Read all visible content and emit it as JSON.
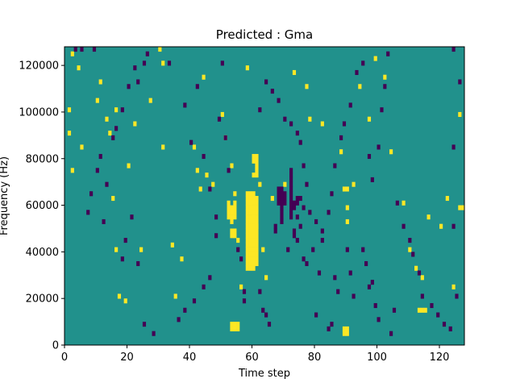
{
  "chart_data": {
    "type": "heatmap",
    "title": "Predicted : Gma",
    "xlabel": "Time step",
    "ylabel": "Frequency (Hz)",
    "xlim": [
      0,
      128
    ],
    "ylim": [
      0,
      128000
    ],
    "xticks": [
      0,
      20,
      40,
      60,
      80,
      100,
      120
    ],
    "xtick_labels": [
      "0",
      "20",
      "40",
      "60",
      "80",
      "100",
      "120"
    ],
    "yticks": [
      0,
      20000,
      40000,
      60000,
      80000,
      100000,
      120000
    ],
    "ytick_labels": [
      "0",
      "20000",
      "40000",
      "60000",
      "80000",
      "100000",
      "120000"
    ],
    "grid": false,
    "n_time_steps": 128,
    "n_frequency_bins": 64,
    "color_scale": {
      "low": {
        "value": -1,
        "color": "#440154"
      },
      "mid": {
        "value": 0,
        "color": "#21918c"
      },
      "high": {
        "value": 1,
        "color": "#fde725"
      }
    },
    "background_value": 0,
    "cells_high": [
      [
        2,
        62
      ],
      [
        4,
        59
      ],
      [
        1,
        50
      ],
      [
        1,
        45
      ],
      [
        2,
        37
      ],
      [
        5,
        42
      ],
      [
        10,
        52
      ],
      [
        11,
        56
      ],
      [
        13,
        48
      ],
      [
        14,
        45
      ],
      [
        15,
        31
      ],
      [
        16,
        50
      ],
      [
        17,
        10
      ],
      [
        16,
        20
      ],
      [
        19,
        9
      ],
      [
        20,
        38
      ],
      [
        22,
        47
      ],
      [
        24,
        20
      ],
      [
        27,
        52
      ],
      [
        30,
        63
      ],
      [
        31,
        60
      ],
      [
        31,
        42
      ],
      [
        34,
        21
      ],
      [
        35,
        10
      ],
      [
        37,
        18
      ],
      [
        41,
        42
      ],
      [
        42,
        37
      ],
      [
        43,
        33
      ],
      [
        44,
        57
      ],
      [
        45,
        36
      ],
      [
        47,
        34
      ],
      [
        50,
        49
      ],
      [
        51,
        44
      ],
      [
        53,
        38
      ],
      [
        54,
        32
      ],
      [
        55,
        22
      ],
      [
        56,
        12
      ],
      [
        58,
        59
      ],
      [
        59,
        30
      ],
      [
        60,
        27
      ],
      [
        61,
        25
      ],
      [
        62,
        34
      ],
      [
        63,
        20
      ],
      [
        64,
        14
      ],
      [
        66,
        31
      ],
      [
        70,
        34
      ],
      [
        73,
        58
      ],
      [
        77,
        55
      ],
      [
        78,
        48
      ],
      [
        82,
        47
      ],
      [
        88,
        41
      ],
      [
        90,
        29
      ],
      [
        90,
        26
      ],
      [
        92,
        34
      ],
      [
        94,
        55
      ],
      [
        97,
        48
      ],
      [
        99,
        61
      ],
      [
        102,
        57
      ],
      [
        104,
        41
      ],
      [
        108,
        30
      ],
      [
        110,
        20
      ],
      [
        112,
        16
      ],
      [
        114,
        14
      ],
      [
        116,
        27
      ],
      [
        120,
        25
      ],
      [
        122,
        31
      ],
      [
        124,
        12
      ],
      [
        126,
        49
      ],
      [
        52,
        30
      ],
      [
        52,
        29
      ],
      [
        52,
        28
      ],
      [
        52,
        27
      ],
      [
        53,
        29
      ],
      [
        53,
        28
      ],
      [
        53,
        27
      ],
      [
        53,
        26
      ],
      [
        54,
        30
      ],
      [
        54,
        29
      ],
      [
        54,
        28
      ],
      [
        54,
        27
      ],
      [
        53,
        24
      ],
      [
        53,
        23
      ],
      [
        54,
        24
      ],
      [
        54,
        23
      ],
      [
        53,
        4
      ],
      [
        53,
        3
      ],
      [
        54,
        4
      ],
      [
        54,
        3
      ],
      [
        55,
        3
      ],
      [
        55,
        4
      ],
      [
        58,
        32
      ],
      [
        58,
        31
      ],
      [
        58,
        30
      ],
      [
        58,
        29
      ],
      [
        58,
        28
      ],
      [
        58,
        27
      ],
      [
        58,
        26
      ],
      [
        58,
        25
      ],
      [
        58,
        24
      ],
      [
        58,
        23
      ],
      [
        58,
        22
      ],
      [
        58,
        21
      ],
      [
        58,
        20
      ],
      [
        58,
        19
      ],
      [
        58,
        18
      ],
      [
        58,
        17
      ],
      [
        58,
        16
      ],
      [
        59,
        32
      ],
      [
        59,
        31
      ],
      [
        59,
        30
      ],
      [
        59,
        29
      ],
      [
        59,
        28
      ],
      [
        59,
        27
      ],
      [
        59,
        26
      ],
      [
        59,
        25
      ],
      [
        59,
        24
      ],
      [
        59,
        23
      ],
      [
        59,
        22
      ],
      [
        59,
        21
      ],
      [
        59,
        20
      ],
      [
        59,
        19
      ],
      [
        59,
        18
      ],
      [
        59,
        17
      ],
      [
        59,
        16
      ],
      [
        60,
        32
      ],
      [
        60,
        31
      ],
      [
        60,
        30
      ],
      [
        60,
        29
      ],
      [
        60,
        28
      ],
      [
        60,
        27
      ],
      [
        60,
        26
      ],
      [
        60,
        25
      ],
      [
        60,
        24
      ],
      [
        60,
        23
      ],
      [
        60,
        22
      ],
      [
        60,
        21
      ],
      [
        60,
        20
      ],
      [
        60,
        19
      ],
      [
        60,
        18
      ],
      [
        60,
        17
      ],
      [
        60,
        16
      ],
      [
        61,
        31
      ],
      [
        61,
        30
      ],
      [
        61,
        29
      ],
      [
        61,
        28
      ],
      [
        61,
        27
      ],
      [
        61,
        26
      ],
      [
        61,
        25
      ],
      [
        61,
        24
      ],
      [
        61,
        23
      ],
      [
        61,
        22
      ],
      [
        61,
        21
      ],
      [
        61,
        20
      ],
      [
        61,
        19
      ],
      [
        61,
        18
      ],
      [
        61,
        17
      ],
      [
        60,
        40
      ],
      [
        60,
        39
      ],
      [
        61,
        40
      ],
      [
        61,
        39
      ],
      [
        61,
        38
      ],
      [
        61,
        37
      ],
      [
        60,
        36
      ],
      [
        61,
        36
      ],
      [
        89,
        3
      ],
      [
        89,
        2
      ],
      [
        90,
        3
      ],
      [
        90,
        2
      ],
      [
        89,
        33
      ],
      [
        90,
        33
      ],
      [
        113,
        7
      ],
      [
        114,
        7
      ],
      [
        115,
        7
      ],
      [
        126,
        29
      ],
      [
        127,
        29
      ]
    ],
    "cells_low": [
      [
        3,
        63
      ],
      [
        5,
        63
      ],
      [
        9,
        63
      ],
      [
        22,
        59
      ],
      [
        23,
        56
      ],
      [
        26,
        62
      ],
      [
        33,
        60
      ],
      [
        38,
        51
      ],
      [
        40,
        43
      ],
      [
        42,
        55
      ],
      [
        44,
        40
      ],
      [
        46,
        33
      ],
      [
        48,
        27
      ],
      [
        48,
        23
      ],
      [
        49,
        48
      ],
      [
        50,
        60
      ],
      [
        51,
        44
      ],
      [
        52,
        37
      ],
      [
        55,
        20
      ],
      [
        56,
        18
      ],
      [
        57,
        11
      ],
      [
        57,
        9
      ],
      [
        62,
        11
      ],
      [
        63,
        7
      ],
      [
        64,
        6
      ],
      [
        65,
        4
      ],
      [
        68,
        33
      ],
      [
        68,
        32
      ],
      [
        68,
        31
      ],
      [
        68,
        30
      ],
      [
        69,
        33
      ],
      [
        69,
        32
      ],
      [
        69,
        31
      ],
      [
        69,
        30
      ],
      [
        69,
        29
      ],
      [
        69,
        28
      ],
      [
        69,
        27
      ],
      [
        69,
        26
      ],
      [
        70,
        32
      ],
      [
        70,
        31
      ],
      [
        70,
        30
      ],
      [
        72,
        37
      ],
      [
        72,
        36
      ],
      [
        72,
        35
      ],
      [
        72,
        34
      ],
      [
        72,
        33
      ],
      [
        72,
        32
      ],
      [
        72,
        31
      ],
      [
        72,
        30
      ],
      [
        72,
        29
      ],
      [
        72,
        28
      ],
      [
        72,
        27
      ],
      [
        73,
        30
      ],
      [
        73,
        29
      ],
      [
        74,
        31
      ],
      [
        74,
        30
      ],
      [
        74,
        27
      ],
      [
        75,
        31
      ],
      [
        76,
        29
      ],
      [
        67,
        25
      ],
      [
        67,
        24
      ],
      [
        71,
        20
      ],
      [
        73,
        24
      ],
      [
        73,
        23
      ],
      [
        74,
        22
      ],
      [
        75,
        25
      ],
      [
        76,
        18
      ],
      [
        77,
        17
      ],
      [
        79,
        20
      ],
      [
        80,
        6
      ],
      [
        81,
        15
      ],
      [
        82,
        22
      ],
      [
        84,
        3
      ],
      [
        85,
        4
      ],
      [
        86,
        14
      ],
      [
        87,
        11
      ],
      [
        90,
        20
      ],
      [
        91,
        15
      ],
      [
        92,
        10
      ],
      [
        95,
        20
      ],
      [
        96,
        17
      ],
      [
        97,
        12
      ],
      [
        98,
        13
      ],
      [
        99,
        8
      ],
      [
        100,
        5
      ],
      [
        104,
        2
      ],
      [
        105,
        7
      ],
      [
        106,
        30
      ],
      [
        108,
        25
      ],
      [
        110,
        22
      ],
      [
        111,
        19
      ],
      [
        113,
        15
      ],
      [
        114,
        10
      ],
      [
        117,
        8
      ],
      [
        119,
        6
      ],
      [
        121,
        4
      ],
      [
        123,
        3
      ],
      [
        124,
        42
      ],
      [
        124,
        25
      ],
      [
        125,
        10
      ],
      [
        126,
        56
      ],
      [
        124,
        63
      ],
      [
        103,
        62
      ],
      [
        102,
        55
      ],
      [
        101,
        50
      ],
      [
        100,
        42
      ],
      [
        98,
        35
      ],
      [
        97,
        40
      ],
      [
        95,
        60
      ],
      [
        93,
        58
      ],
      [
        91,
        51
      ],
      [
        89,
        47
      ],
      [
        88,
        44
      ],
      [
        86,
        38
      ],
      [
        85,
        32
      ],
      [
        84,
        28
      ],
      [
        82,
        24
      ],
      [
        80,
        26
      ],
      [
        78,
        28
      ],
      [
        77,
        34
      ],
      [
        76,
        38
      ],
      [
        75,
        43
      ],
      [
        74,
        45
      ],
      [
        72,
        47
      ],
      [
        70,
        48
      ],
      [
        68,
        52
      ],
      [
        66,
        54
      ],
      [
        64,
        56
      ],
      [
        62,
        50
      ],
      [
        36,
        5
      ],
      [
        38,
        7
      ],
      [
        41,
        9
      ],
      [
        44,
        12
      ],
      [
        46,
        14
      ],
      [
        23,
        17
      ],
      [
        25,
        4
      ],
      [
        28,
        2
      ],
      [
        18,
        18
      ],
      [
        19,
        22
      ],
      [
        21,
        27
      ],
      [
        12,
        26
      ],
      [
        13,
        34
      ],
      [
        7,
        28
      ],
      [
        8,
        32
      ],
      [
        10,
        37
      ],
      [
        11,
        40
      ],
      [
        15,
        44
      ],
      [
        16,
        46
      ],
      [
        18,
        50
      ],
      [
        20,
        55
      ],
      [
        25,
        60
      ]
    ]
  }
}
